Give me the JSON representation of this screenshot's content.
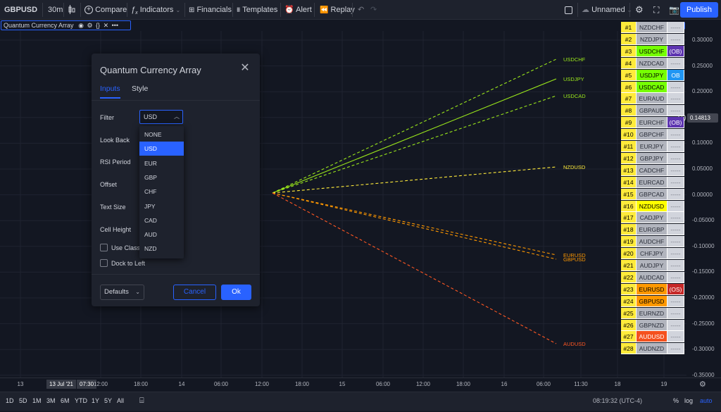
{
  "toolbar": {
    "symbol": "GBPUSD",
    "interval": "30m",
    "compare": "Compare",
    "indicators": "Indicators",
    "financials": "Financials",
    "templates": "Templates",
    "alert": "Alert",
    "replay": "Replay",
    "layout_name": "Unnamed",
    "publish": "Publish"
  },
  "indicator_legend": {
    "name": "Quantum Currency Array",
    "more": "•••"
  },
  "dialog": {
    "title": "Quantum Currency Array",
    "tabs": [
      "Inputs",
      "Style"
    ],
    "active_tab": "Inputs",
    "fields": {
      "filter_label": "Filter",
      "filter_value": "USD",
      "look_back_label": "Look Back",
      "rsi_period_label": "RSI Period",
      "offset_label": "Offset",
      "text_size_label": "Text Size",
      "cell_height_label": "Cell Height",
      "use_classic_label": "Use Classi",
      "dock_to_left_label": "Dock to Left"
    },
    "dropdown_options": [
      "NONE",
      "USD",
      "EUR",
      "GBP",
      "CHF",
      "JPY",
      "CAD",
      "AUD",
      "NZD"
    ],
    "dropdown_selected": "USD",
    "defaults": "Defaults",
    "cancel": "Cancel",
    "ok": "Ok"
  },
  "chart": {
    "line_labels": [
      {
        "text": "USDCHF",
        "color": "#9be81b"
      },
      {
        "text": "USDJPY",
        "color": "#9be81b"
      },
      {
        "text": "USDCAD",
        "color": "#9be81b"
      },
      {
        "text": "NZDUSD",
        "color": "#ffeb3b"
      },
      {
        "text": "EURUSD",
        "color": "#ff9800"
      },
      {
        "text": "GBPUSD",
        "color": "#ff9800"
      },
      {
        "text": "AUDUSD",
        "color": "#ff5722"
      }
    ],
    "price_axis": [
      "0.30000",
      "0.25000",
      "0.20000",
      "0.15000",
      "0.10000",
      "0.05000",
      "0.00000",
      "-0.05000",
      "-0.10000",
      "-0.15000",
      "-0.20000",
      "-0.25000",
      "-0.30000",
      "-0.35000"
    ],
    "last_price": "0.14813",
    "time_axis": [
      "13",
      "12:00",
      "18:00",
      "14",
      "06:00",
      "12:00",
      "18:00",
      "15",
      "06:00",
      "12:00",
      "18:00",
      "16",
      "06:00",
      "11:30",
      "18",
      "19"
    ],
    "time_highlight_date": "13 Jul '21",
    "time_highlight_time": "07:30"
  },
  "table": [
    {
      "rank": "#1",
      "pair": "NZDCHF",
      "pair_bg": "#b2b5be",
      "tag": "-----",
      "tag_bg": "#d1d4dc"
    },
    {
      "rank": "#2",
      "pair": "NZDJPY",
      "pair_bg": "#b2b5be",
      "tag": "-----",
      "tag_bg": "#d1d4dc"
    },
    {
      "rank": "#3",
      "pair": "USDCHF",
      "pair_bg": "#76ff03",
      "tag": "(OB)",
      "tag_bg": "#5e35b1"
    },
    {
      "rank": "#4",
      "pair": "NZDCAD",
      "pair_bg": "#b2b5be",
      "tag": "-----",
      "tag_bg": "#d1d4dc"
    },
    {
      "rank": "#5",
      "pair": "USDJPY",
      "pair_bg": "#76ff03",
      "tag": "OB",
      "tag_bg": "#2196f3"
    },
    {
      "rank": "#6",
      "pair": "USDCAD",
      "pair_bg": "#76ff03",
      "tag": "-----",
      "tag_bg": "#d1d4dc"
    },
    {
      "rank": "#7",
      "pair": "EURAUD",
      "pair_bg": "#b2b5be",
      "tag": "-----",
      "tag_bg": "#d1d4dc"
    },
    {
      "rank": "#8",
      "pair": "GBPAUD",
      "pair_bg": "#b2b5be",
      "tag": "-----",
      "tag_bg": "#d1d4dc"
    },
    {
      "rank": "#9",
      "pair": "EURCHF",
      "pair_bg": "#b2b5be",
      "tag": "(OB)",
      "tag_bg": "#5e35b1"
    },
    {
      "rank": "#10",
      "pair": "GBPCHF",
      "pair_bg": "#b2b5be",
      "tag": "-----",
      "tag_bg": "#d1d4dc"
    },
    {
      "rank": "#11",
      "pair": "EURJPY",
      "pair_bg": "#b2b5be",
      "tag": "-----",
      "tag_bg": "#d1d4dc"
    },
    {
      "rank": "#12",
      "pair": "GBPJPY",
      "pair_bg": "#b2b5be",
      "tag": "-----",
      "tag_bg": "#d1d4dc"
    },
    {
      "rank": "#13",
      "pair": "CADCHF",
      "pair_bg": "#b2b5be",
      "tag": "-----",
      "tag_bg": "#d1d4dc"
    },
    {
      "rank": "#14",
      "pair": "EURCAD",
      "pair_bg": "#b2b5be",
      "tag": "-----",
      "tag_bg": "#d1d4dc"
    },
    {
      "rank": "#15",
      "pair": "GBPCAD",
      "pair_bg": "#b2b5be",
      "tag": "-----",
      "tag_bg": "#d1d4dc"
    },
    {
      "rank": "#16",
      "pair": "NZDUSD",
      "pair_bg": "#ffff00",
      "tag": "-----",
      "tag_bg": "#d1d4dc"
    },
    {
      "rank": "#17",
      "pair": "CADJPY",
      "pair_bg": "#b2b5be",
      "tag": "-----",
      "tag_bg": "#d1d4dc"
    },
    {
      "rank": "#18",
      "pair": "EURGBP",
      "pair_bg": "#b2b5be",
      "tag": "-----",
      "tag_bg": "#d1d4dc"
    },
    {
      "rank": "#19",
      "pair": "AUDCHF",
      "pair_bg": "#b2b5be",
      "tag": "-----",
      "tag_bg": "#d1d4dc"
    },
    {
      "rank": "#20",
      "pair": "CHFJPY",
      "pair_bg": "#b2b5be",
      "tag": "-----",
      "tag_bg": "#d1d4dc"
    },
    {
      "rank": "#21",
      "pair": "AUDJPY",
      "pair_bg": "#b2b5be",
      "tag": "-----",
      "tag_bg": "#d1d4dc"
    },
    {
      "rank": "#22",
      "pair": "AUDCAD",
      "pair_bg": "#b2b5be",
      "tag": "-----",
      "tag_bg": "#d1d4dc"
    },
    {
      "rank": "#23",
      "pair": "EURUSD",
      "pair_bg": "#ff9800",
      "tag": "(OS)",
      "tag_bg": "#c62828"
    },
    {
      "rank": "#24",
      "pair": "GBPUSD",
      "pair_bg": "#ff9800",
      "tag": "-----",
      "tag_bg": "#d1d4dc"
    },
    {
      "rank": "#25",
      "pair": "EURNZD",
      "pair_bg": "#b2b5be",
      "tag": "-----",
      "tag_bg": "#d1d4dc"
    },
    {
      "rank": "#26",
      "pair": "GBPNZD",
      "pair_bg": "#b2b5be",
      "tag": "-----",
      "tag_bg": "#d1d4dc"
    },
    {
      "rank": "#27",
      "pair": "AUDUSD",
      "pair_bg": "#f4511e",
      "tag": "-----",
      "tag_bg": "#d1d4dc"
    },
    {
      "rank": "#28",
      "pair": "AUDNZD",
      "pair_bg": "#b2b5be",
      "tag": "-----",
      "tag_bg": "#d1d4dc"
    }
  ],
  "bottom": {
    "ranges": [
      "1D",
      "5D",
      "1M",
      "3M",
      "6M",
      "YTD",
      "1Y",
      "5Y",
      "All"
    ],
    "clock": "08:19:32 (UTC-4)",
    "percent": "%",
    "log": "log",
    "auto": "auto"
  }
}
